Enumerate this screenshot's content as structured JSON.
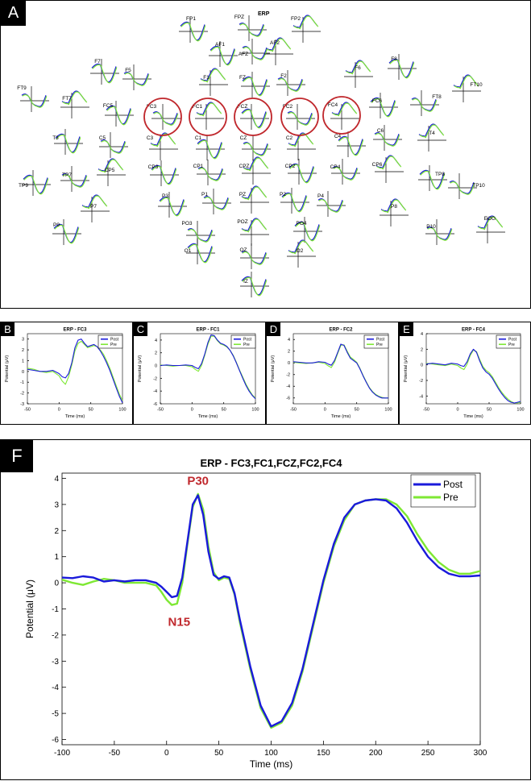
{
  "panel_labels": {
    "A": "A",
    "B": "B",
    "C": "C",
    "D": "D",
    "E": "E",
    "F": "F"
  },
  "colors": {
    "post": "#1a1adb",
    "pre": "#7ee833",
    "circle": "#c0282d",
    "annotation": "#c0282d"
  },
  "topomap": {
    "title": "ERP",
    "circled": [
      "FC3",
      "FC1",
      "FCZ",
      "FC2",
      "FC4"
    ],
    "electrodes": [
      "FP1",
      "FPZ",
      "FP2",
      "AF1",
      "AFZ",
      "AF2",
      "F7",
      "F5",
      "F1",
      "FZ",
      "F2",
      "F6",
      "F8",
      "FT9",
      "FT7",
      "FC5",
      "FC3",
      "FC1",
      "FCZ",
      "FC2",
      "FC4",
      "FC6",
      "FT8",
      "FT10",
      "T3",
      "C5",
      "C3",
      "C1",
      "CZ",
      "C2",
      "C4",
      "C6",
      "T4",
      "TP9",
      "TP7",
      "CP5",
      "CP3",
      "CP1",
      "CPZ",
      "CP2",
      "CP4",
      "CP6",
      "TP8",
      "TP10",
      "P7",
      "P3",
      "P1",
      "PZ",
      "P2",
      "P4",
      "P8",
      "P9",
      "PO3",
      "POZ",
      "PO4",
      "P10",
      "EOG",
      "O1",
      "OZ",
      "O2",
      "IZ"
    ]
  },
  "chart_data": [
    {
      "type": "line",
      "title": "ERP - FC3",
      "xlabel": "Time (ms)",
      "ylabel": "Potential (μV)",
      "xlim": [
        -50,
        100
      ],
      "ylim": [
        -3,
        3.5
      ],
      "xticks": [
        -50,
        0,
        50,
        100
      ],
      "yticks": [
        -3,
        -2,
        -1,
        0,
        1,
        2,
        3
      ],
      "legend": "top-right",
      "series": [
        {
          "name": "Post",
          "x": [
            -50,
            -40,
            -30,
            -20,
            -10,
            0,
            5,
            10,
            15,
            20,
            25,
            30,
            35,
            40,
            45,
            50,
            55,
            60,
            65,
            70,
            75,
            80,
            85,
            90,
            95,
            100
          ],
          "y": [
            0.2,
            0.1,
            0.0,
            0.0,
            0.1,
            -0.2,
            -0.5,
            -0.6,
            -0.2,
            0.8,
            2.2,
            2.9,
            3.0,
            2.6,
            2.3,
            2.4,
            2.5,
            2.3,
            1.9,
            1.4,
            0.8,
            0.1,
            -0.7,
            -1.5,
            -2.3,
            -2.9
          ]
        },
        {
          "name": "Pre",
          "x": [
            -50,
            -40,
            -30,
            -20,
            -10,
            0,
            5,
            10,
            15,
            20,
            25,
            30,
            35,
            40,
            45,
            50,
            55,
            60,
            65,
            70,
            75,
            80,
            85,
            90,
            95,
            100
          ],
          "y": [
            0.3,
            0.2,
            0.0,
            -0.1,
            0.0,
            -0.4,
            -0.9,
            -1.2,
            -0.5,
            0.6,
            1.9,
            2.6,
            2.8,
            2.5,
            2.2,
            2.3,
            2.4,
            2.3,
            2.0,
            1.6,
            1.0,
            0.3,
            -0.5,
            -1.3,
            -2.1,
            -2.7
          ]
        }
      ]
    },
    {
      "type": "line",
      "title": "ERP - FC1",
      "xlabel": "Time (ms)",
      "ylabel": "Potential (μV)",
      "xlim": [
        -50,
        100
      ],
      "ylim": [
        -6,
        5
      ],
      "xticks": [
        -50,
        0,
        50,
        100
      ],
      "yticks": [
        -6,
        -4,
        -2,
        0,
        2,
        4
      ],
      "legend": "top-right",
      "series": [
        {
          "name": "Post",
          "x": [
            -50,
            -40,
            -30,
            -20,
            -10,
            0,
            5,
            10,
            15,
            20,
            25,
            30,
            35,
            40,
            45,
            50,
            55,
            60,
            65,
            70,
            75,
            80,
            85,
            90,
            95,
            100
          ],
          "y": [
            0.0,
            0.1,
            0.0,
            0.0,
            0.1,
            0.0,
            -0.3,
            -0.5,
            0.3,
            1.8,
            3.6,
            4.8,
            4.7,
            4.0,
            3.5,
            3.3,
            3.0,
            2.4,
            1.5,
            0.4,
            -0.8,
            -2.0,
            -3.1,
            -4.0,
            -4.7,
            -5.2
          ]
        },
        {
          "name": "Pre",
          "x": [
            -50,
            -40,
            -30,
            -20,
            -10,
            0,
            5,
            10,
            15,
            20,
            25,
            30,
            35,
            40,
            45,
            50,
            55,
            60,
            65,
            70,
            75,
            80,
            85,
            90,
            95,
            100
          ],
          "y": [
            0.1,
            0.0,
            -0.1,
            0.0,
            0.0,
            -0.2,
            -0.6,
            -0.9,
            0.0,
            1.6,
            3.3,
            4.6,
            4.6,
            3.9,
            3.4,
            3.2,
            2.9,
            2.4,
            1.6,
            0.5,
            -0.7,
            -1.8,
            -2.9,
            -3.8,
            -4.6,
            -5.1
          ]
        }
      ]
    },
    {
      "type": "line",
      "title": "ERP - FC2",
      "xlabel": "Time (ms)",
      "ylabel": "Potential (μV)",
      "xlim": [
        -50,
        100
      ],
      "ylim": [
        -7,
        5
      ],
      "xticks": [
        -50,
        0,
        50,
        100
      ],
      "yticks": [
        -6,
        -4,
        -2,
        0,
        2,
        4
      ],
      "legend": "top-right",
      "series": [
        {
          "name": "Post",
          "x": [
            -50,
            -40,
            -30,
            -20,
            -10,
            0,
            5,
            10,
            15,
            20,
            25,
            30,
            35,
            40,
            45,
            50,
            55,
            60,
            65,
            70,
            75,
            80,
            85,
            90,
            95,
            100
          ],
          "y": [
            0.2,
            0.1,
            0.0,
            0.0,
            0.2,
            0.1,
            -0.2,
            -0.4,
            0.4,
            1.8,
            3.2,
            3.0,
            1.8,
            0.8,
            0.4,
            0.0,
            -1.0,
            -2.2,
            -3.3,
            -4.3,
            -5.0,
            -5.5,
            -5.8,
            -6.0,
            -6.0,
            -6.0
          ]
        },
        {
          "name": "Pre",
          "x": [
            -50,
            -40,
            -30,
            -20,
            -10,
            0,
            5,
            10,
            15,
            20,
            25,
            30,
            35,
            40,
            45,
            50,
            55,
            60,
            65,
            70,
            75,
            80,
            85,
            90,
            95,
            100
          ],
          "y": [
            0.1,
            0.0,
            -0.1,
            0.0,
            0.1,
            -0.1,
            -0.5,
            -0.8,
            0.1,
            1.6,
            3.0,
            3.1,
            2.0,
            1.0,
            0.6,
            0.1,
            -0.9,
            -2.1,
            -3.2,
            -4.2,
            -4.9,
            -5.4,
            -5.7,
            -5.9,
            -6.0,
            -6.0
          ]
        }
      ]
    },
    {
      "type": "line",
      "title": "ERP - FC4",
      "xlabel": "Time (ms)",
      "ylabel": "Potential (μV)",
      "xlim": [
        -50,
        100
      ],
      "ylim": [
        -5,
        4
      ],
      "xticks": [
        -50,
        0,
        50,
        100
      ],
      "yticks": [
        -4,
        -2,
        0,
        2,
        4
      ],
      "legend": "top-right",
      "series": [
        {
          "name": "Post",
          "x": [
            -50,
            -40,
            -30,
            -20,
            -10,
            0,
            5,
            10,
            15,
            20,
            25,
            30,
            35,
            40,
            45,
            50,
            55,
            60,
            65,
            70,
            75,
            80,
            85,
            90,
            95,
            100
          ],
          "y": [
            0.1,
            0.2,
            0.1,
            0.0,
            0.2,
            0.1,
            -0.1,
            -0.2,
            0.4,
            1.4,
            2.0,
            1.6,
            0.5,
            -0.4,
            -0.9,
            -1.2,
            -1.7,
            -2.4,
            -3.1,
            -3.7,
            -4.2,
            -4.6,
            -4.8,
            -4.9,
            -4.8,
            -4.7
          ]
        },
        {
          "name": "Pre",
          "x": [
            -50,
            -40,
            -30,
            -20,
            -10,
            0,
            5,
            10,
            15,
            20,
            25,
            30,
            35,
            40,
            45,
            50,
            55,
            60,
            65,
            70,
            75,
            80,
            85,
            90,
            95,
            100
          ],
          "y": [
            0.2,
            0.1,
            0.0,
            -0.1,
            0.1,
            -0.1,
            -0.4,
            -0.6,
            0.1,
            1.2,
            1.9,
            1.7,
            0.7,
            -0.2,
            -0.7,
            -1.0,
            -1.5,
            -2.2,
            -2.9,
            -3.5,
            -4.0,
            -4.4,
            -4.7,
            -4.9,
            -4.9,
            -4.8
          ]
        }
      ]
    },
    {
      "type": "line",
      "title": "ERP - FC3,FC1,FCZ,FC2,FC4",
      "xlabel": "Time (ms)",
      "ylabel": "Potential (μV)",
      "xlim": [
        -100,
        300
      ],
      "ylim": [
        -6.2,
        4.2
      ],
      "xticks": [
        -100,
        -50,
        0,
        50,
        100,
        150,
        200,
        250,
        300
      ],
      "yticks": [
        -6,
        -5,
        -4,
        -3,
        -2,
        -1,
        0,
        1,
        2,
        3,
        4
      ],
      "legend": "top-right",
      "annotations": [
        {
          "text": "P30",
          "x": 30,
          "y": 3.45
        },
        {
          "text": "N15",
          "x": 12,
          "y": -0.85
        }
      ],
      "series": [
        {
          "name": "Post",
          "x": [
            -100,
            -90,
            -80,
            -70,
            -60,
            -50,
            -40,
            -30,
            -20,
            -10,
            -5,
            0,
            5,
            10,
            15,
            20,
            25,
            30,
            35,
            40,
            45,
            50,
            55,
            60,
            65,
            70,
            80,
            90,
            100,
            110,
            120,
            130,
            140,
            150,
            160,
            170,
            180,
            190,
            200,
            210,
            220,
            230,
            240,
            250,
            260,
            270,
            280,
            290,
            300
          ],
          "y": [
            0.2,
            0.18,
            0.25,
            0.2,
            0.05,
            0.1,
            0.05,
            0.1,
            0.1,
            0.0,
            -0.15,
            -0.35,
            -0.55,
            -0.5,
            0.2,
            1.6,
            3.0,
            3.35,
            2.6,
            1.2,
            0.3,
            0.15,
            0.25,
            0.2,
            -0.4,
            -1.4,
            -3.2,
            -4.7,
            -5.5,
            -5.3,
            -4.6,
            -3.3,
            -1.6,
            0.1,
            1.5,
            2.5,
            3.0,
            3.15,
            3.2,
            3.15,
            2.85,
            2.3,
            1.6,
            1.0,
            0.6,
            0.35,
            0.25,
            0.25,
            0.28
          ]
        },
        {
          "name": "Pre",
          "x": [
            -100,
            -90,
            -80,
            -70,
            -60,
            -50,
            -40,
            -30,
            -20,
            -10,
            -5,
            0,
            5,
            10,
            15,
            20,
            25,
            30,
            35,
            40,
            45,
            50,
            55,
            60,
            65,
            70,
            80,
            90,
            100,
            110,
            120,
            130,
            140,
            150,
            160,
            170,
            180,
            190,
            200,
            210,
            220,
            230,
            240,
            250,
            260,
            270,
            280,
            290,
            300
          ],
          "y": [
            0.12,
            0.0,
            -0.08,
            0.05,
            0.15,
            0.1,
            0.0,
            0.0,
            0.0,
            -0.1,
            -0.35,
            -0.65,
            -0.85,
            -0.8,
            0.0,
            1.5,
            2.9,
            3.4,
            2.8,
            1.4,
            0.4,
            0.1,
            0.2,
            0.15,
            -0.45,
            -1.5,
            -3.3,
            -4.8,
            -5.55,
            -5.35,
            -4.7,
            -3.4,
            -1.7,
            0.0,
            1.4,
            2.4,
            3.0,
            3.15,
            3.2,
            3.2,
            3.0,
            2.55,
            1.85,
            1.25,
            0.8,
            0.5,
            0.35,
            0.35,
            0.45
          ]
        }
      ]
    }
  ]
}
